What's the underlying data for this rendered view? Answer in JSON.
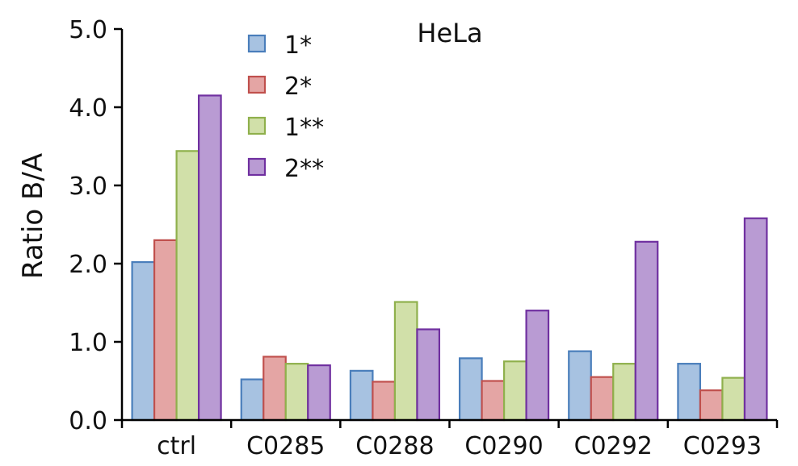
{
  "chart_data": {
    "type": "bar",
    "title": "HeLa",
    "xlabel": "",
    "ylabel": "Ratio B/A",
    "ylim": [
      0,
      5
    ],
    "yticks": [
      "0.0",
      "1.0",
      "2.0",
      "3.0",
      "4.0",
      "5.0"
    ],
    "categories": [
      "ctrl",
      "C0285",
      "C0288",
      "C0290",
      "C0292",
      "C0293"
    ],
    "grid": false,
    "legend_position": "top-center",
    "series": [
      {
        "name": "1*",
        "fill": "#a7c2e1",
        "stroke": "#4a7ebb",
        "values": [
          2.02,
          0.52,
          0.63,
          0.79,
          0.88,
          0.72
        ]
      },
      {
        "name": "2*",
        "fill": "#e4a5a4",
        "stroke": "#c0504d",
        "values": [
          2.3,
          0.81,
          0.49,
          0.5,
          0.55,
          0.38
        ]
      },
      {
        "name": "1**",
        "fill": "#d1e0a9",
        "stroke": "#8fb04c",
        "values": [
          3.44,
          0.72,
          1.51,
          0.75,
          0.72,
          0.54
        ]
      },
      {
        "name": "2**",
        "fill": "#b99bd3",
        "stroke": "#7030a0",
        "values": [
          4.15,
          0.7,
          1.16,
          1.4,
          2.28,
          2.58
        ]
      }
    ]
  }
}
